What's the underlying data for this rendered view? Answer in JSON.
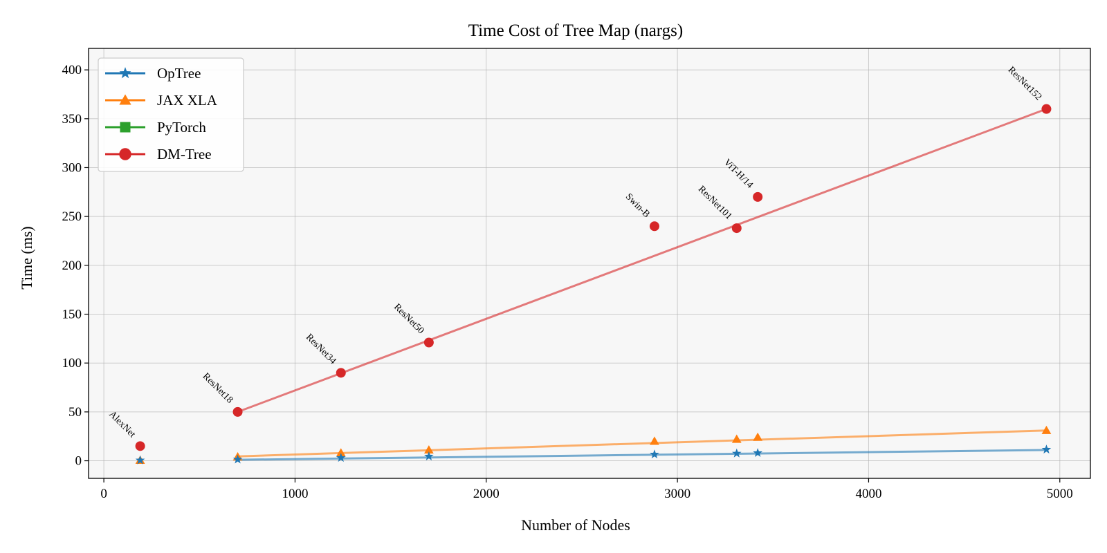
{
  "chart_data": {
    "type": "line",
    "title": "Time Cost of Tree Map (nargs)",
    "xlabel": "Number of Nodes",
    "ylabel": "Time (ms)",
    "xlim": [
      -80,
      5160
    ],
    "ylim": [
      -18,
      422
    ],
    "xticks": [
      0,
      1000,
      2000,
      3000,
      4000,
      5000
    ],
    "yticks": [
      0,
      50,
      100,
      150,
      200,
      250,
      300,
      350,
      400
    ],
    "grid": true,
    "legend": "top-left",
    "series": [
      {
        "name": "OpTree",
        "color": "#1f77b4",
        "marker": "star",
        "fit": [
          [
            700,
            1
          ],
          [
            4930,
            11
          ]
        ],
        "points": [
          [
            190,
            0.5
          ],
          [
            700,
            1.3
          ],
          [
            1240,
            3
          ],
          [
            1700,
            4.5
          ],
          [
            2880,
            6.5
          ],
          [
            3310,
            7.5
          ],
          [
            3420,
            8
          ],
          [
            4930,
            11.5
          ]
        ]
      },
      {
        "name": "JAX XLA",
        "color": "#ff7f0e",
        "marker": "triangle",
        "fit": [
          [
            700,
            4.5
          ],
          [
            4930,
            31
          ]
        ],
        "points": [
          [
            190,
            0.5
          ],
          [
            700,
            4
          ],
          [
            1240,
            8
          ],
          [
            1700,
            11
          ],
          [
            2880,
            20
          ],
          [
            3310,
            22
          ],
          [
            3420,
            24
          ],
          [
            4930,
            31
          ]
        ]
      },
      {
        "name": "PyTorch",
        "color": "#2ca02c",
        "marker": "square",
        "fit": [],
        "points": []
      },
      {
        "name": "DM-Tree",
        "color": "#d62728",
        "marker": "circle",
        "fit": [
          [
            700,
            50
          ],
          [
            4930,
            360
          ]
        ],
        "points": [
          [
            190,
            15
          ],
          [
            700,
            50
          ],
          [
            1240,
            90
          ],
          [
            1700,
            121
          ],
          [
            2880,
            240
          ],
          [
            3310,
            238
          ],
          [
            3420,
            270
          ],
          [
            4930,
            360
          ]
        ]
      }
    ],
    "annotations": [
      {
        "text": "AlexNet",
        "x": 190,
        "y": 15
      },
      {
        "text": "ResNet18",
        "x": 700,
        "y": 50
      },
      {
        "text": "ResNet34",
        "x": 1240,
        "y": 90
      },
      {
        "text": "ResNet50",
        "x": 1700,
        "y": 121
      },
      {
        "text": "Swin-B",
        "x": 2880,
        "y": 240
      },
      {
        "text": "ResNet101",
        "x": 3310,
        "y": 238
      },
      {
        "text": "ViT-H/14",
        "x": 3420,
        "y": 270
      },
      {
        "text": "ResNet152",
        "x": 4930,
        "y": 360
      }
    ]
  }
}
